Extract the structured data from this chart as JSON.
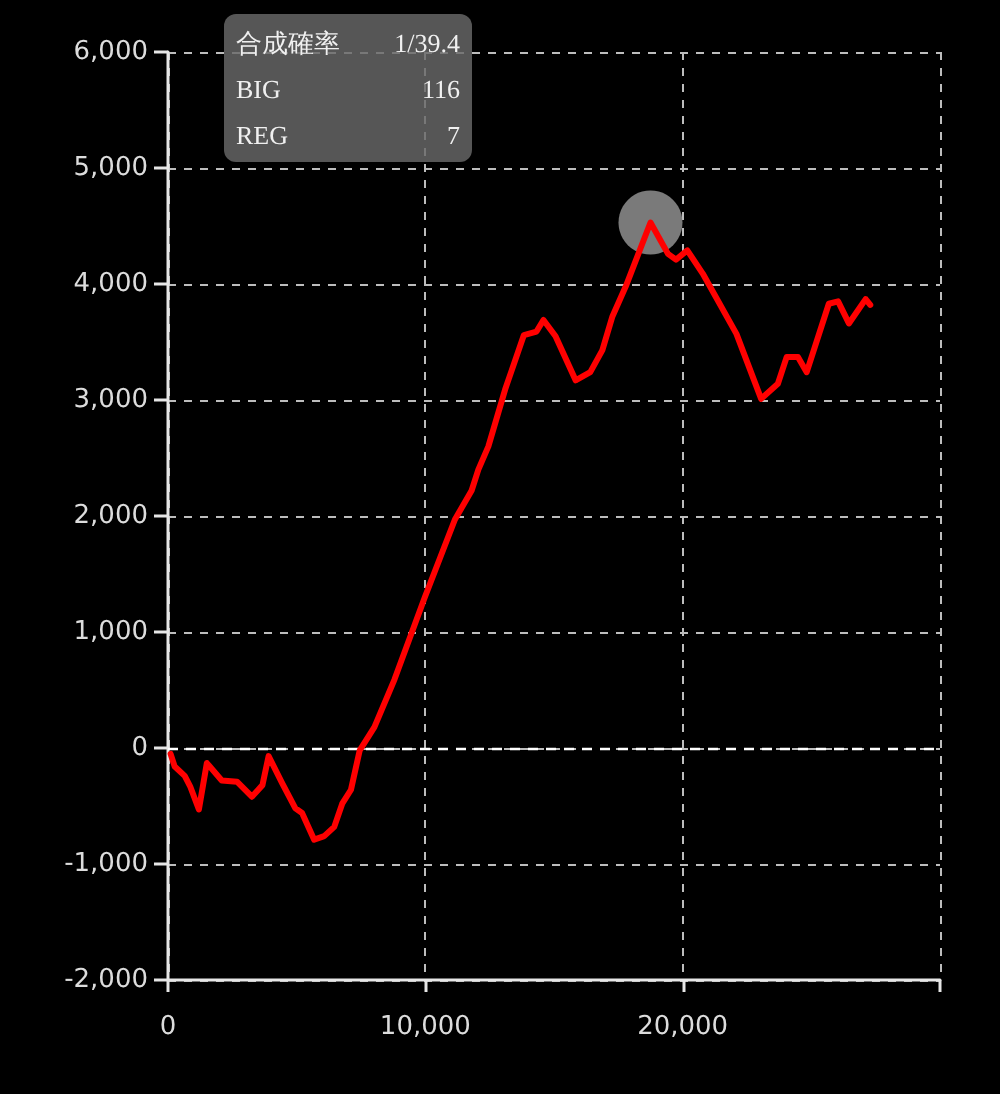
{
  "chart_data": {
    "type": "line",
    "x": [
      100,
      260,
      650,
      860,
      1200,
      1510,
      2090,
      2680,
      3260,
      3670,
      3910,
      4430,
      4950,
      5210,
      5680,
      6070,
      6460,
      6770,
      7110,
      7450,
      8020,
      8800,
      9980,
      11150,
      11800,
      12060,
      12450,
      13100,
      13830,
      14320,
      14590,
      15060,
      15840,
      16410,
      16880,
      17270,
      17790,
      18750,
      19430,
      19740,
      20180,
      20780,
      22090,
      23050,
      23700,
      24040,
      24480,
      24820,
      25680,
      26040,
      26460,
      27110,
      27290
    ],
    "series": [
      {
        "color": "#ff0000",
        "values": [
          -50,
          -160,
          -240,
          -330,
          -530,
          -130,
          -280,
          -290,
          -420,
          -320,
          -70,
          -300,
          -520,
          -560,
          -790,
          -760,
          -680,
          -480,
          -360,
          -20,
          180,
          590,
          1300,
          1970,
          2220,
          2400,
          2600,
          3090,
          3560,
          3590,
          3690,
          3550,
          3170,
          3240,
          3430,
          3720,
          3980,
          4530,
          4260,
          4210,
          4290,
          4090,
          3570,
          3010,
          3140,
          3370,
          3370,
          3240,
          3830,
          3850,
          3660,
          3870,
          3820
        ]
      },
      {
        "type": "scatter",
        "color": "#999999",
        "marker": "circle",
        "x": [
          18750
        ],
        "values": [
          4530
        ]
      }
    ],
    "xlim": [
      0,
      30000
    ],
    "xticks": [
      0,
      {
        "value": 10000,
        "label": "10,000"
      },
      {
        "value": 20000,
        "label": "20,000"
      },
      {
        "value": 30000,
        "label": null
      }
    ],
    "ylim": [
      -2000,
      6000
    ],
    "yticks": [
      {
        "value": -2000,
        "label": "-2,000"
      },
      {
        "value": -1000,
        "label": "-1,000"
      },
      0,
      {
        "value": 1000,
        "label": "1,000"
      },
      {
        "value": 2000,
        "label": "2,000"
      },
      {
        "value": 3000,
        "label": "3,000"
      },
      {
        "value": 4000,
        "label": "4,000"
      },
      {
        "value": 5000,
        "label": "5,000"
      },
      {
        "value": 6000,
        "label": "6,000"
      }
    ],
    "ref_lines": [
      {
        "axis": "y",
        "value": 0,
        "color": "#ffffff",
        "line_style": "dashed"
      }
    ],
    "annotations": [
      "合成確率",
      "1/39.4",
      "BIG",
      "116",
      "REG",
      "7"
    ],
    "grid": true,
    "marker": "none",
    "line_style": "solid"
  }
}
